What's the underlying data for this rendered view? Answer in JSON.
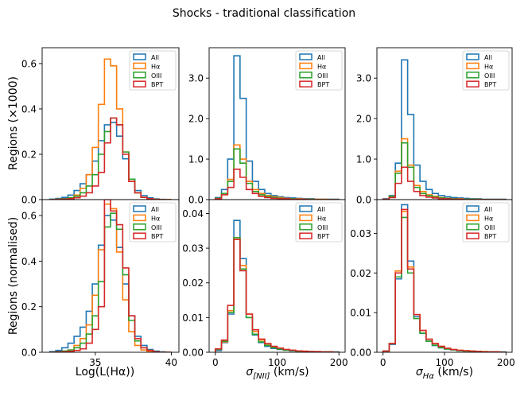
{
  "suptitle": "Shocks - traditional classification",
  "colors": {
    "All": "#1f77b4",
    "Ha": "#ff7f0e",
    "OIII": "#2ca02c",
    "BPT": "#d62728"
  },
  "legend": [
    "All",
    "Hα",
    "OIII",
    "BPT"
  ],
  "labels": {
    "ylabel_top": "Regions (×1000)",
    "ylabel_bottom": "Regions (normalised)",
    "xlabel_lum": "Log(L(Hα))",
    "xlabel_nii_sym": "σ",
    "xlabel_nii_sub": "[NII]",
    "xlabel_nii_unit": " (km/s)",
    "xlabel_ha_sym": "σ",
    "xlabel_ha_sub": "Hα",
    "xlabel_ha_unit": " (km/s)"
  },
  "chart_data": [
    {
      "id": "lum-top",
      "type": "histogram-step",
      "ylabel": "Regions (×1000)",
      "ylim": [
        0,
        0.67
      ],
      "yticks": [
        0.0,
        0.2,
        0.4,
        0.6
      ],
      "ytick_labels": [
        "0.0",
        "0.2",
        "0.4",
        "0.6"
      ],
      "xlim": [
        31.5,
        40.5
      ],
      "xticks": [],
      "xtick_labels": [],
      "bins": [
        32.0,
        32.4,
        32.8,
        33.2,
        33.6,
        34.0,
        34.4,
        34.8,
        35.2,
        35.6,
        36.0,
        36.4,
        36.8,
        37.2,
        37.6,
        38.0,
        38.4,
        38.8,
        39.2,
        39.6,
        40.0
      ],
      "series": [
        {
          "name": "All",
          "values": [
            0.002,
            0.005,
            0.01,
            0.02,
            0.04,
            0.07,
            0.11,
            0.17,
            0.26,
            0.33,
            0.34,
            0.28,
            0.18,
            0.09,
            0.04,
            0.018,
            0.008,
            0.003,
            0.001,
            0.0
          ]
        },
        {
          "name": "Hα",
          "values": [
            0.0,
            0.002,
            0.004,
            0.008,
            0.02,
            0.05,
            0.11,
            0.23,
            0.42,
            0.62,
            0.59,
            0.4,
            0.21,
            0.08,
            0.03,
            0.01,
            0.004,
            0.001,
            0.0,
            0.0
          ]
        },
        {
          "name": "OIII",
          "values": [
            0.0,
            0.002,
            0.004,
            0.008,
            0.015,
            0.03,
            0.06,
            0.11,
            0.2,
            0.3,
            0.36,
            0.33,
            0.21,
            0.09,
            0.03,
            0.01,
            0.004,
            0.001,
            0.0,
            0.0
          ]
        },
        {
          "name": "BPT",
          "values": [
            0.0,
            0.001,
            0.002,
            0.004,
            0.008,
            0.015,
            0.03,
            0.06,
            0.12,
            0.25,
            0.36,
            0.33,
            0.2,
            0.08,
            0.03,
            0.01,
            0.004,
            0.001,
            0.0,
            0.0
          ]
        }
      ]
    },
    {
      "id": "nii-top",
      "type": "histogram-step",
      "ylabel": "",
      "ylim": [
        0,
        3.75
      ],
      "yticks": [
        0.0,
        1.0,
        2.0,
        3.0
      ],
      "ytick_labels": [
        "0.0",
        "1.0",
        "2.0",
        "3.0"
      ],
      "xlim": [
        -10,
        210
      ],
      "xticks": [],
      "xtick_labels": [],
      "bins": [
        0,
        10,
        20,
        30,
        40,
        50,
        60,
        70,
        80,
        90,
        100,
        110,
        120,
        130,
        140,
        150,
        160,
        170,
        180,
        190,
        200
      ],
      "series": [
        {
          "name": "All",
          "values": [
            0.05,
            0.25,
            1.0,
            3.55,
            2.5,
            0.95,
            0.45,
            0.25,
            0.15,
            0.1,
            0.07,
            0.05,
            0.04,
            0.03,
            0.02,
            0.02,
            0.01,
            0.01,
            0.01,
            0.01
          ]
        },
        {
          "name": "Hα",
          "values": [
            0.03,
            0.15,
            0.5,
            1.35,
            1.0,
            0.45,
            0.25,
            0.15,
            0.1,
            0.07,
            0.05,
            0.03,
            0.02,
            0.02,
            0.01,
            0.01,
            0.01,
            0.01,
            0.0,
            0.0
          ]
        },
        {
          "name": "OIII",
          "values": [
            0.03,
            0.15,
            0.45,
            1.25,
            0.9,
            0.4,
            0.2,
            0.12,
            0.08,
            0.05,
            0.03,
            0.02,
            0.02,
            0.01,
            0.01,
            0.01,
            0.0,
            0.0,
            0.0,
            0.0
          ]
        },
        {
          "name": "BPT",
          "values": [
            0.02,
            0.12,
            0.3,
            0.75,
            0.55,
            0.25,
            0.15,
            0.08,
            0.05,
            0.03,
            0.02,
            0.02,
            0.01,
            0.01,
            0.01,
            0.0,
            0.0,
            0.0,
            0.0,
            0.0
          ]
        }
      ]
    },
    {
      "id": "ha-top",
      "type": "histogram-step",
      "ylabel": "",
      "ylim": [
        0,
        3.75
      ],
      "yticks": [
        0.0,
        1.0,
        2.0,
        3.0
      ],
      "ytick_labels": [
        "0.0",
        "1.0",
        "2.0",
        "3.0"
      ],
      "xlim": [
        -10,
        210
      ],
      "xticks": [],
      "xtick_labels": [],
      "bins": [
        0,
        10,
        20,
        30,
        40,
        50,
        60,
        70,
        80,
        90,
        100,
        110,
        120,
        130,
        140,
        150,
        160,
        170,
        180,
        190,
        200
      ],
      "series": [
        {
          "name": "All",
          "values": [
            0.02,
            0.1,
            0.9,
            3.45,
            2.1,
            0.85,
            0.45,
            0.25,
            0.15,
            0.1,
            0.07,
            0.05,
            0.04,
            0.03,
            0.02,
            0.02,
            0.01,
            0.01,
            0.01,
            0.01
          ]
        },
        {
          "name": "Hα",
          "values": [
            0.01,
            0.08,
            0.7,
            1.5,
            0.85,
            0.35,
            0.2,
            0.12,
            0.08,
            0.05,
            0.03,
            0.02,
            0.02,
            0.01,
            0.01,
            0.01,
            0.0,
            0.0,
            0.0,
            0.0
          ]
        },
        {
          "name": "OIII",
          "values": [
            0.01,
            0.08,
            0.65,
            1.4,
            0.8,
            0.3,
            0.15,
            0.1,
            0.06,
            0.04,
            0.03,
            0.02,
            0.01,
            0.01,
            0.01,
            0.0,
            0.0,
            0.0,
            0.0,
            0.0
          ]
        },
        {
          "name": "BPT",
          "values": [
            0.01,
            0.05,
            0.4,
            0.8,
            0.45,
            0.2,
            0.1,
            0.06,
            0.04,
            0.02,
            0.02,
            0.01,
            0.01,
            0.0,
            0.0,
            0.0,
            0.0,
            0.0,
            0.0,
            0.0
          ]
        }
      ]
    },
    {
      "id": "lum-bottom",
      "type": "histogram-step",
      "ylabel": "Regions (normalised)",
      "ylim": [
        0,
        0.67
      ],
      "yticks": [
        0.0,
        0.2,
        0.4,
        0.6
      ],
      "ytick_labels": [
        "0.0",
        "0.2",
        "0.4",
        "0.6"
      ],
      "xlim": [
        31.5,
        40.5
      ],
      "xticks": [
        35,
        40
      ],
      "xtick_labels": [
        "35",
        "40"
      ],
      "xlabel": "Log(L(Hα))",
      "bins": [
        32.0,
        32.4,
        32.8,
        33.2,
        33.6,
        34.0,
        34.4,
        34.8,
        35.2,
        35.6,
        36.0,
        36.4,
        36.8,
        37.2,
        37.6,
        38.0,
        38.4,
        38.8,
        39.2,
        39.6,
        40.0
      ],
      "series": [
        {
          "name": "All",
          "values": [
            0.003,
            0.008,
            0.02,
            0.04,
            0.07,
            0.11,
            0.18,
            0.3,
            0.47,
            0.6,
            0.58,
            0.46,
            0.3,
            0.16,
            0.07,
            0.03,
            0.012,
            0.005,
            0.002,
            0.0
          ]
        },
        {
          "name": "Hα",
          "values": [
            0.0,
            0.002,
            0.005,
            0.01,
            0.03,
            0.06,
            0.12,
            0.25,
            0.45,
            0.65,
            0.63,
            0.44,
            0.23,
            0.09,
            0.03,
            0.01,
            0.004,
            0.001,
            0.0,
            0.0
          ]
        },
        {
          "name": "OIII",
          "values": [
            0.0,
            0.002,
            0.005,
            0.01,
            0.02,
            0.04,
            0.08,
            0.16,
            0.31,
            0.55,
            0.61,
            0.54,
            0.34,
            0.14,
            0.05,
            0.02,
            0.008,
            0.002,
            0.0,
            0.0
          ]
        },
        {
          "name": "BPT",
          "values": [
            0.0,
            0.001,
            0.002,
            0.004,
            0.008,
            0.015,
            0.04,
            0.1,
            0.2,
            0.67,
            0.62,
            0.56,
            0.37,
            0.16,
            0.06,
            0.02,
            0.008,
            0.002,
            0.0,
            0.0
          ]
        }
      ]
    },
    {
      "id": "nii-bottom",
      "type": "histogram-step",
      "ylabel": "",
      "ylim": [
        0,
        0.044
      ],
      "yticks": [
        0.0,
        0.01,
        0.02,
        0.03,
        0.04
      ],
      "ytick_labels": [
        "0.00",
        "0.01",
        "0.02",
        "0.03",
        "0.04"
      ],
      "xlim": [
        -10,
        210
      ],
      "xticks": [
        0,
        100,
        200
      ],
      "xtick_labels": [
        "0",
        "100",
        "200"
      ],
      "xlabel": "σ[NII] (km/s)",
      "bins": [
        0,
        10,
        20,
        30,
        40,
        50,
        60,
        70,
        80,
        90,
        100,
        110,
        120,
        130,
        140,
        150,
        160,
        170,
        180,
        190,
        200
      ],
      "series": [
        {
          "name": "All",
          "values": [
            0.0005,
            0.0028,
            0.011,
            0.038,
            0.027,
            0.01,
            0.005,
            0.0028,
            0.0017,
            0.0011,
            0.0008,
            0.0006,
            0.0004,
            0.0003,
            0.0002,
            0.0002,
            0.0001,
            0.0001,
            0.0001,
            0.0001
          ]
        },
        {
          "name": "Hα",
          "values": [
            0.0008,
            0.003,
            0.012,
            0.033,
            0.025,
            0.011,
            0.006,
            0.0035,
            0.0024,
            0.0016,
            0.0011,
            0.0008,
            0.0006,
            0.0004,
            0.0003,
            0.0002,
            0.0002,
            0.0001,
            0.0001,
            0.0
          ]
        },
        {
          "name": "OIII",
          "values": [
            0.0008,
            0.0032,
            0.0115,
            0.033,
            0.024,
            0.01,
            0.0052,
            0.003,
            0.002,
            0.0013,
            0.0009,
            0.0006,
            0.0005,
            0.0003,
            0.0002,
            0.0002,
            0.0001,
            0.0001,
            0.0001,
            0.0
          ]
        },
        {
          "name": "BPT",
          "values": [
            0.001,
            0.0035,
            0.0135,
            0.0325,
            0.0235,
            0.011,
            0.0065,
            0.0038,
            0.0025,
            0.0017,
            0.0012,
            0.0008,
            0.0006,
            0.0004,
            0.0003,
            0.0002,
            0.0002,
            0.0001,
            0.0001,
            0.0
          ]
        }
      ]
    },
    {
      "id": "ha-bottom",
      "type": "histogram-step",
      "ylabel": "",
      "ylim": [
        0,
        0.0385
      ],
      "yticks": [
        0.0,
        0.01,
        0.02,
        0.03
      ],
      "ytick_labels": [
        "0.00",
        "0.01",
        "0.02",
        "0.03"
      ],
      "xlim": [
        -10,
        210
      ],
      "xticks": [
        0,
        100,
        200
      ],
      "xtick_labels": [
        "0",
        "100",
        "200"
      ],
      "xlabel": "σHα (km/s)",
      "bins": [
        0,
        10,
        20,
        30,
        40,
        50,
        60,
        70,
        80,
        90,
        100,
        110,
        120,
        130,
        140,
        150,
        160,
        170,
        180,
        190,
        200
      ],
      "series": [
        {
          "name": "All",
          "values": [
            0.0003,
            0.002,
            0.0185,
            0.0372,
            0.023,
            0.009,
            0.0048,
            0.0028,
            0.0017,
            0.0011,
            0.0008,
            0.0006,
            0.0004,
            0.0003,
            0.0002,
            0.0002,
            0.0001,
            0.0001,
            0.0001,
            0.0001
          ]
        },
        {
          "name": "Hα",
          "values": [
            0.0003,
            0.0022,
            0.0205,
            0.0355,
            0.0215,
            0.0095,
            0.0055,
            0.0033,
            0.0022,
            0.0015,
            0.001,
            0.0007,
            0.0005,
            0.0004,
            0.0003,
            0.0002,
            0.0002,
            0.0001,
            0.0001,
            0.0
          ]
        },
        {
          "name": "OIII",
          "values": [
            0.0003,
            0.0022,
            0.019,
            0.034,
            0.02,
            0.0085,
            0.0048,
            0.0028,
            0.0018,
            0.0012,
            0.0008,
            0.0006,
            0.0004,
            0.0003,
            0.0002,
            0.0002,
            0.0001,
            0.0001,
            0.0,
            0.0
          ]
        },
        {
          "name": "BPT",
          "values": [
            0.0003,
            0.0022,
            0.02,
            0.036,
            0.021,
            0.0095,
            0.0055,
            0.0033,
            0.0022,
            0.0015,
            0.001,
            0.0007,
            0.0005,
            0.0004,
            0.0003,
            0.0002,
            0.0001,
            0.0001,
            0.0001,
            0.0
          ]
        }
      ]
    }
  ]
}
